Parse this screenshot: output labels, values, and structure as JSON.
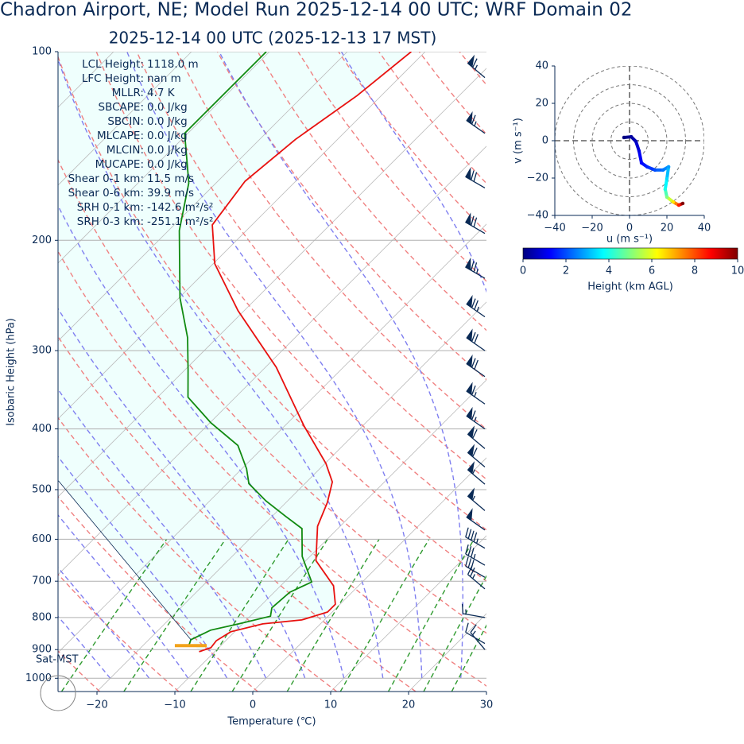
{
  "chart_data": [
    {
      "type": "skewt",
      "title": "Chadron Airport, NE; Model Run 2025-12-14 00 UTC; WRF Domain 02",
      "subtitle": "2025-12-14 00 UTC  (2025-12-13 17 MST)",
      "x_label": "Temperature (℃)",
      "y_label": "Isobaric Height (hPa)",
      "xlim": [
        -25,
        30
      ],
      "xticks": [
        {
          "value": -20,
          "label": "−20"
        },
        {
          "value": -10,
          "label": "−10"
        },
        0,
        10,
        20,
        30
      ],
      "ylim": [
        1050,
        100
      ],
      "yticks": [
        100,
        200,
        300,
        400,
        500,
        600,
        700,
        800,
        900,
        1000
      ],
      "log_y": true,
      "grid": true,
      "station_label": "Sat-MST",
      "annotations": [
        {
          "label": "LCL Height:",
          "value": "1118.0 m"
        },
        {
          "label": "LFC Height:",
          "value": "nan m"
        },
        {
          "label": "MLLR:",
          "value": "4.7 K"
        },
        {
          "label": "SBCAPE:",
          "value": "0.0 J/kg"
        },
        {
          "label": "SBCIN:",
          "value": "0.0 J/kg"
        },
        {
          "label": "MLCAPE:",
          "value": "0.0 J/kg"
        },
        {
          "label": "MLCIN:",
          "value": "0.0 J/kg"
        },
        {
          "label": "MUCAPE:",
          "value": "0.0 J/kg"
        },
        {
          "label": "Shear 0-1 km:",
          "value": "11.5 m/s"
        },
        {
          "label": "Shear 0-6 km:",
          "value": "39.9 m/s"
        },
        {
          "label": "SRH 0-1 km:",
          "value": "-142.6 m²/s²"
        },
        {
          "label": "SRH 0-3 km:",
          "value": "-251.1 m²/s²"
        }
      ],
      "series": [
        {
          "color": "#e8110f",
          "p": [
            100,
            117.5,
            138,
            161,
            189,
            218,
            259,
            319,
            395,
            454,
            486,
            524,
            572,
            649,
            712,
            762,
            784,
            807,
            819,
            843,
            871,
            894,
            907
          ],
          "values": [
            -61.8,
            -63.1,
            -65.4,
            -66.5,
            -65.1,
            -59.8,
            -50.8,
            -38.6,
            -27.6,
            -19.9,
            -16.7,
            -14.7,
            -12.9,
            -8.7,
            -3.2,
            -0.6,
            -0.6,
            -2.9,
            -7.4,
            -10.5,
            -11.2,
            -11.0,
            -12.0
          ]
        },
        {
          "color": "#118a11",
          "p": [
            100,
            135,
            162,
            193,
            247,
            286,
            322,
            356,
            391,
            425,
            463,
            489,
            521,
            552,
            577,
            639,
            702,
            729,
            772,
            796,
            819,
            838,
            868,
            887
          ],
          "values": [
            -80.4,
            -80.4,
            -73.5,
            -68.6,
            -59.9,
            -53.8,
            -49.6,
            -46.1,
            -39.9,
            -33.5,
            -29.4,
            -27.2,
            -22.8,
            -18.2,
            -14.6,
            -11.0,
            -6.5,
            -8.0,
            -8.3,
            -7.4,
            -10.5,
            -13.3,
            -14.6,
            -14.1
          ]
        },
        {
          "color": "#0a2a55",
          "p": [
            484,
            868
          ],
          "values": [
            -52.0,
            -14.6
          ]
        }
      ],
      "lcl": {
        "p": 887,
        "values": [
          -15.9,
          -11.8
        ],
        "color": "#f2a21a"
      },
      "winds": {
        "p": [
          110,
          135,
          165,
          195,
          230,
          265,
          300,
          330,
          365,
          400,
          430,
          460,
          490,
          540,
          580,
          620,
          660,
          690,
          720,
          800,
          880,
          900
        ],
        "speed": [
          65,
          65,
          70,
          70,
          75,
          75,
          70,
          70,
          65,
          65,
          60,
          60,
          55,
          55,
          50,
          45,
          35,
          30,
          25,
          15,
          10,
          15
        ],
        "direction": [
          310,
          305,
          300,
          300,
          300,
          305,
          305,
          305,
          305,
          305,
          310,
          310,
          310,
          310,
          305,
          300,
          300,
          300,
          310,
          280,
          300,
          320
        ]
      }
    },
    {
      "type": "hodograph",
      "x_label": "u (m s⁻¹)",
      "y_label": "v (m s⁻¹)",
      "xlim": [
        -40,
        40
      ],
      "xticks": [
        {
          "value": -40,
          "label": "−40"
        },
        {
          "value": -20,
          "label": "−20"
        },
        0,
        20,
        40
      ],
      "ylim": [
        -40,
        40
      ],
      "yticks": [
        {
          "value": -40,
          "label": "−40"
        },
        {
          "value": -20,
          "label": "−20"
        },
        0,
        20,
        40
      ],
      "rings": [
        10,
        20,
        30,
        40
      ],
      "u": [
        -3.0,
        0.9,
        3.4,
        5.1,
        6.4,
        9.4,
        13.6,
        17.9,
        20.9,
        20.0,
        19.1,
        20.0,
        23.4,
        26.4,
        28.5
      ],
      "v": [
        1.7,
        2.1,
        -0.4,
        -5.5,
        -11.9,
        -14.0,
        -15.7,
        -15.7,
        -14.0,
        -20.4,
        -26.0,
        -30.2,
        -32.8,
        -34.5,
        -33.6
      ],
      "height": [
        0,
        0.3,
        0.6,
        1.0,
        1.3,
        1.6,
        2.0,
        2.4,
        2.8,
        3.4,
        4.0,
        5.0,
        6.5,
        8.5,
        10
      ],
      "colorbar": {
        "label": "Height (km AGL)",
        "lim": [
          0,
          10
        ],
        "ticks": [
          0,
          2,
          4,
          6,
          8,
          10
        ]
      }
    }
  ]
}
